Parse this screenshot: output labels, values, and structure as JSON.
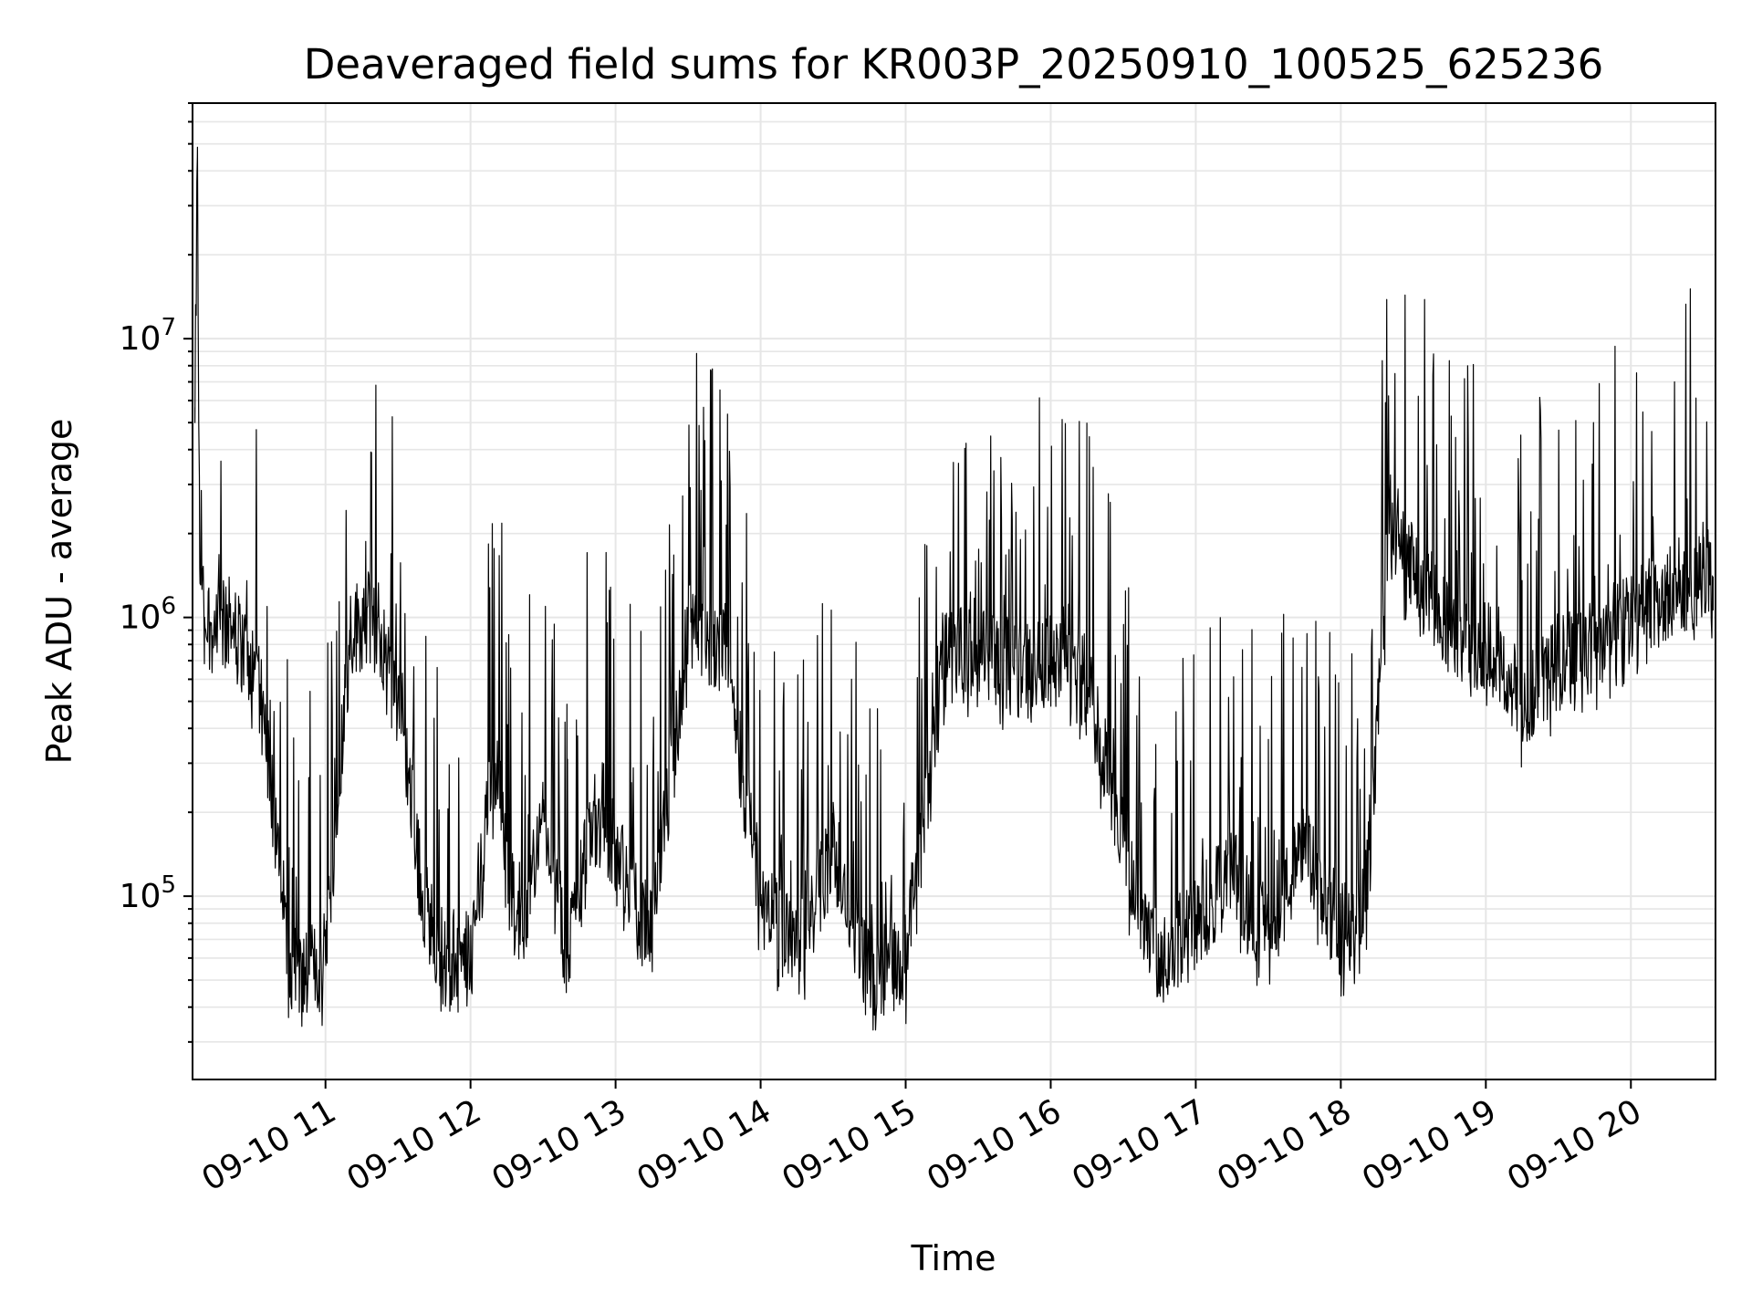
{
  "chart_data": {
    "type": "line",
    "title": "Deaveraged field sums for KR003P_20250910_100525_625236",
    "xlabel": "Time",
    "ylabel": "Peak ADU - average",
    "yscale": "log",
    "ylim": [
      22000,
      70000000
    ],
    "xlim": [
      "2025-09-10 10:05",
      "2025-09-10 20:35"
    ],
    "grid": true,
    "line_color": "#000000",
    "grid_color": "#e6e6e6",
    "x_ticks": [
      {
        "t": "2025-09-10 11:00",
        "label": "09-10 11"
      },
      {
        "t": "2025-09-10 12:00",
        "label": "09-10 12"
      },
      {
        "t": "2025-09-10 13:00",
        "label": "09-10 13"
      },
      {
        "t": "2025-09-10 14:00",
        "label": "09-10 14"
      },
      {
        "t": "2025-09-10 15:00",
        "label": "09-10 15"
      },
      {
        "t": "2025-09-10 16:00",
        "label": "09-10 16"
      },
      {
        "t": "2025-09-10 17:00",
        "label": "09-10 17"
      },
      {
        "t": "2025-09-10 18:00",
        "label": "09-10 18"
      },
      {
        "t": "2025-09-10 19:00",
        "label": "09-10 19"
      },
      {
        "t": "2025-09-10 20:00",
        "label": "09-10 20"
      }
    ],
    "y_ticks": [
      {
        "value": 100000,
        "base": "10",
        "exp": "5"
      },
      {
        "value": 1000000,
        "base": "10",
        "exp": "6"
      },
      {
        "value": 10000000,
        "base": "10",
        "exp": "7"
      }
    ],
    "series": [
      {
        "name": "",
        "x": [
          "2025-09-10 10:06",
          "2025-09-10 10:07",
          "2025-09-10 10:08",
          "2025-09-10 10:10",
          "2025-09-10 10:15",
          "2025-09-10 10:20",
          "2025-09-10 10:25",
          "2025-09-10 10:30",
          "2025-09-10 10:35",
          "2025-09-10 10:40",
          "2025-09-10 10:45",
          "2025-09-10 10:50",
          "2025-09-10 11:00",
          "2025-09-10 11:10",
          "2025-09-10 11:20",
          "2025-09-10 11:30",
          "2025-09-10 11:40",
          "2025-09-10 11:50",
          "2025-09-10 12:00",
          "2025-09-10 12:10",
          "2025-09-10 12:20",
          "2025-09-10 12:30",
          "2025-09-10 12:40",
          "2025-09-10 12:50",
          "2025-09-10 13:00",
          "2025-09-10 13:15",
          "2025-09-10 13:30",
          "2025-09-10 13:45",
          "2025-09-10 14:00",
          "2025-09-10 14:15",
          "2025-09-10 14:30",
          "2025-09-10 14:45",
          "2025-09-10 15:00",
          "2025-09-10 15:15",
          "2025-09-10 15:30",
          "2025-09-10 15:45",
          "2025-09-10 16:00",
          "2025-09-10 16:15",
          "2025-09-10 16:30",
          "2025-09-10 16:45",
          "2025-09-10 17:00",
          "2025-09-10 17:15",
          "2025-09-10 17:30",
          "2025-09-10 17:45",
          "2025-09-10 18:00",
          "2025-09-10 18:10",
          "2025-09-10 18:20",
          "2025-09-10 18:30",
          "2025-09-10 18:45",
          "2025-09-10 19:00",
          "2025-09-10 19:15",
          "2025-09-10 19:30",
          "2025-09-10 19:45",
          "2025-09-10 20:00",
          "2025-09-10 20:15",
          "2025-09-10 20:30",
          "2025-09-10 20:34"
        ],
        "y": [
          5000000,
          45000000,
          1500000,
          1000000,
          900000,
          950000,
          800000,
          700000,
          400000,
          150000,
          60000,
          50000,
          60000,
          900000,
          1000000,
          600000,
          100000,
          55000,
          60000,
          300000,
          70000,
          200000,
          60000,
          200000,
          150000,
          70000,
          900000,
          800000,
          100000,
          60000,
          150000,
          50000,
          60000,
          700000,
          800000,
          650000,
          700000,
          600000,
          150000,
          60000,
          80000,
          120000,
          70000,
          150000,
          75000,
          90000,
          2000000,
          1500000,
          900000,
          800000,
          500000,
          700000,
          800000,
          1000000,
          1200000,
          1500000,
          1400000
        ]
      }
    ]
  }
}
